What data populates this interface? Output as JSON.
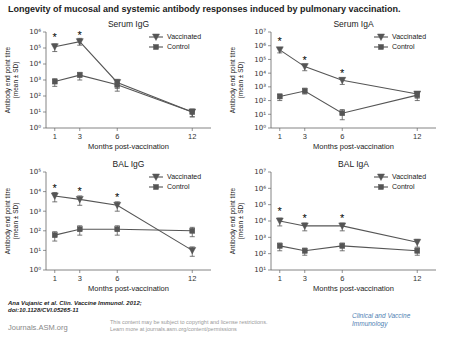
{
  "title": "Longevity of mucosal and systemic antibody responses induced by pulmonary vaccination.",
  "annotations": [
    "Ana Vujanic et al. Clin. Vaccine Immunol. 2012;\ndoi:10.1128/CVI.05265-11",
    "Journals.ASM.org",
    "This content may be subject to copyright and license restrictions.\nLearn more at journals.asm.org/content/permissions",
    "Clinical and Vaccine\nImmunology"
  ],
  "chart_data": [
    {
      "type": "line",
      "title": "Serum IgG",
      "xlabel": "Months post-vaccination",
      "ylabel": "Antibody end point titre\n(mean ± SD)",
      "x": [
        1,
        3,
        6,
        12
      ],
      "xlim": [
        0.3,
        13.5
      ],
      "xticks": [
        1,
        3,
        6,
        12
      ],
      "ylim": [
        1,
        1000000
      ],
      "yticks": [
        {
          "value": 1,
          "label": "10⁰"
        },
        {
          "value": 10,
          "label": "10¹"
        },
        {
          "value": 100,
          "label": "10²"
        },
        {
          "value": 1000,
          "label": "10³"
        },
        {
          "value": 10000,
          "label": "10⁴"
        },
        {
          "value": 100000,
          "label": "10⁵"
        },
        {
          "value": 1000000,
          "label": "10⁶"
        }
      ],
      "log": "y",
      "grid": false,
      "legend": "top-right",
      "series": [
        {
          "name": "Vaccinated",
          "color": "#555555",
          "marker": "triangle-down",
          "line_style": "solid",
          "values": [
            120000,
            250000,
            700,
            10
          ],
          "error_low": [
            60000,
            100000,
            400,
            5
          ],
          "error_high": [
            60000,
            150000,
            400,
            5
          ]
        },
        {
          "name": "Control",
          "color": "#555555",
          "marker": "square",
          "line_style": "solid",
          "values": [
            800,
            2000,
            500,
            10
          ],
          "error_low": [
            400,
            1000,
            300,
            5
          ],
          "error_high": [
            400,
            1000,
            300,
            5
          ]
        }
      ],
      "annotations": [
        {
          "text": "*",
          "x": 1,
          "y": 350000
        },
        {
          "text": "*",
          "x": 3,
          "y": 500000
        }
      ]
    },
    {
      "type": "line",
      "title": "Serum IgA",
      "xlabel": "Months post-vaccination",
      "ylabel": "Antibody end point titre\n(mean ± SD)",
      "x": [
        1,
        3,
        6,
        12
      ],
      "xlim": [
        0.3,
        13.5
      ],
      "xticks": [
        1,
        3,
        6,
        12
      ],
      "ylim": [
        1,
        10000000
      ],
      "yticks": [
        {
          "value": 1,
          "label": "10⁰"
        },
        {
          "value": 10,
          "label": "10¹"
        },
        {
          "value": 100,
          "label": "10²"
        },
        {
          "value": 1000,
          "label": "10³"
        },
        {
          "value": 10000,
          "label": "10⁴"
        },
        {
          "value": 100000,
          "label": "10⁵"
        },
        {
          "value": 1000000,
          "label": "10⁶"
        },
        {
          "value": 10000000,
          "label": "10⁷"
        }
      ],
      "log": "y",
      "grid": false,
      "legend": "top-right",
      "series": [
        {
          "name": "Vaccinated",
          "color": "#555555",
          "marker": "triangle-down",
          "line_style": "solid",
          "values": [
            500000,
            30000,
            3000,
            300
          ],
          "error_low": [
            200000,
            15000,
            1500,
            150
          ],
          "error_high": [
            200000,
            15000,
            1500,
            150
          ]
        },
        {
          "name": "Control",
          "color": "#555555",
          "marker": "square",
          "line_style": "solid",
          "values": [
            200,
            500,
            12,
            250
          ],
          "error_low": [
            100,
            200,
            8,
            150
          ],
          "error_high": [
            100,
            300,
            10,
            150
          ]
        }
      ],
      "annotations": [
        {
          "text": "*",
          "x": 1,
          "y": 1500000
        },
        {
          "text": "*",
          "x": 3,
          "y": 70000
        },
        {
          "text": "*",
          "x": 6,
          "y": 7000
        }
      ]
    },
    {
      "type": "line",
      "title": "BAL IgG",
      "xlabel": "Months post-vaccination",
      "ylabel": "Antibody end point titre\n(mean ± SD)",
      "x": [
        1,
        3,
        6,
        12
      ],
      "xlim": [
        0.3,
        13.5
      ],
      "xticks": [
        1,
        3,
        6,
        12
      ],
      "ylim": [
        1,
        100000
      ],
      "yticks": [
        {
          "value": 1,
          "label": "10⁰"
        },
        {
          "value": 10,
          "label": "10¹"
        },
        {
          "value": 100,
          "label": "10²"
        },
        {
          "value": 1000,
          "label": "10³"
        },
        {
          "value": 10000,
          "label": "10⁴"
        },
        {
          "value": 100000,
          "label": "10⁵"
        }
      ],
      "log": "y",
      "grid": false,
      "legend": "top-right",
      "series": [
        {
          "name": "Vaccinated",
          "color": "#555555",
          "marker": "triangle-down",
          "line_style": "solid",
          "values": [
            6000,
            4000,
            2000,
            10
          ],
          "error_low": [
            3000,
            2000,
            1000,
            5
          ],
          "error_high": [
            3000,
            2000,
            1000,
            5
          ]
        },
        {
          "name": "Control",
          "color": "#555555",
          "marker": "square",
          "line_style": "solid",
          "values": [
            60,
            120,
            120,
            100
          ],
          "error_low": [
            30,
            60,
            60,
            50
          ],
          "error_high": [
            30,
            60,
            60,
            50
          ]
        }
      ],
      "annotations": [
        {
          "text": "*",
          "x": 1,
          "y": 12000
        },
        {
          "text": "*",
          "x": 3,
          "y": 8000
        },
        {
          "text": "*",
          "x": 6,
          "y": 4000
        }
      ]
    },
    {
      "type": "line",
      "title": "BAL IgA",
      "xlabel": "Months post-vaccination",
      "ylabel": "Antibody end point titre\n(mean ± SD)",
      "x": [
        1,
        3,
        6,
        12
      ],
      "xlim": [
        0.3,
        13.5
      ],
      "xticks": [
        1,
        3,
        6,
        12
      ],
      "ylim": [
        10,
        10000000
      ],
      "yticks": [
        {
          "value": 10,
          "label": "10¹"
        },
        {
          "value": 100,
          "label": "10²"
        },
        {
          "value": 1000,
          "label": "10³"
        },
        {
          "value": 10000,
          "label": "10⁴"
        },
        {
          "value": 100000,
          "label": "10⁵"
        },
        {
          "value": 1000000,
          "label": "10⁶"
        },
        {
          "value": 10000000,
          "label": "10⁷"
        }
      ],
      "log": "y",
      "grid": false,
      "legend": "top-right",
      "series": [
        {
          "name": "Vaccinated",
          "color": "#555555",
          "marker": "triangle-down",
          "line_style": "solid",
          "values": [
            10000,
            5000,
            5000,
            500
          ],
          "error_low": [
            5000,
            2500,
            2500,
            250
          ],
          "error_high": [
            5000,
            2500,
            2500,
            250
          ]
        },
        {
          "name": "Control",
          "color": "#555555",
          "marker": "square",
          "line_style": "solid",
          "values": [
            300,
            150,
            300,
            150
          ],
          "error_low": [
            150,
            70,
            150,
            70
          ],
          "error_high": [
            150,
            70,
            150,
            70
          ]
        }
      ],
      "annotations": [
        {
          "text": "*",
          "x": 1,
          "y": 30000
        },
        {
          "text": "*",
          "x": 3,
          "y": 12000
        },
        {
          "text": "*",
          "x": 6,
          "y": 12000
        }
      ]
    }
  ]
}
